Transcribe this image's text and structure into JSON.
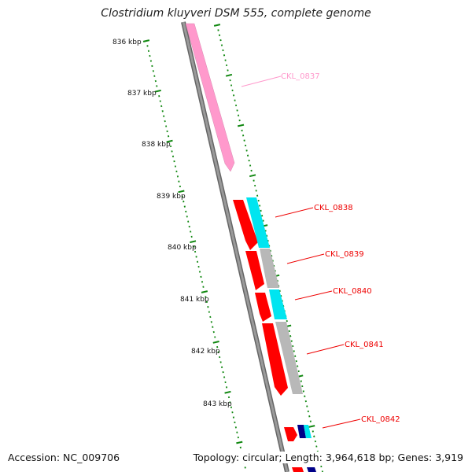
{
  "title": "Clostridium kluyveri DSM 555, complete genome",
  "footer": {
    "accession": "Accession: NC_009706",
    "stats": "Topology: circular; Length: 3,964,618 bp; Genes: 3,919"
  },
  "ruler_labels": [
    "836 kbp",
    "837 kbp",
    "838 kbp",
    "839 kbp",
    "840 kbp",
    "841 kbp",
    "842 kbp",
    "843 kbp"
  ],
  "genes": [
    {
      "name": "CKL_0837",
      "color": "#ff99cc"
    },
    {
      "name": "CKL_0838",
      "color": "#ee0000"
    },
    {
      "name": "CKL_0839",
      "color": "#ee0000"
    },
    {
      "name": "CKL_0840",
      "color": "#ee0000"
    },
    {
      "name": "CKL_0841",
      "color": "#ee0000"
    },
    {
      "name": "CKL_0842",
      "color": "#ee0000"
    }
  ],
  "colors": {
    "backbone": "#888888",
    "tick": "#118811",
    "cds": "#ff0000",
    "trna_like": "#00e5f0",
    "other": "#b8b8b8",
    "pink_gene": "#ff99cc",
    "dark_blue": "#000088"
  }
}
